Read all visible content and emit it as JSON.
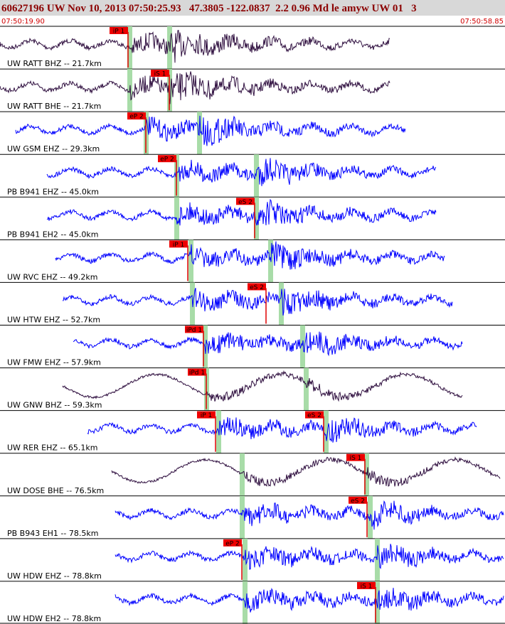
{
  "header": {
    "title": "60627196 UW Nov 10, 2013 07:50:25.93   47.3805 -122.0837  2.2 0.96 Md le amyw UW 01   3",
    "start_time": "07:50:19.90",
    "end_time": "07:50:58.85"
  },
  "traces": [
    {
      "label": "UW RATT BHZ -- 21.7km",
      "picks": [
        "iP 1"
      ]
    },
    {
      "label": "UW RATT BHE -- 21.7km",
      "picks": [
        "iS 1"
      ]
    },
    {
      "label": "UW GSM EHZ -- 29.3km",
      "picks": [
        "eP 2"
      ]
    },
    {
      "label": "PB B941 EHZ -- 45.0km",
      "picks": [
        "eP 2"
      ]
    },
    {
      "label": "PB B941 EH2 -- 45.0km",
      "picks": [
        "eS 2"
      ]
    },
    {
      "label": "UW RVC EHZ -- 49.2km",
      "picks": [
        "iP 1"
      ]
    },
    {
      "label": "UW HTW EHZ -- 52.7km",
      "picks": [
        "eS 2"
      ]
    },
    {
      "label": "UW FMW EHZ -- 57.9km",
      "picks": [
        "iPd 1"
      ]
    },
    {
      "label": "UW GNW BHZ -- 59.3km",
      "picks": [
        "iPd 1"
      ]
    },
    {
      "label": "UW RER EHZ -- 65.1km",
      "picks": [
        "iP 1",
        "eS 2"
      ]
    },
    {
      "label": "UW DOSE BHE -- 76.5km",
      "picks": [
        "iS 1"
      ]
    },
    {
      "label": "PB B943 EH1 -- 78.5km",
      "picks": [
        "eS 2"
      ]
    },
    {
      "label": "UW HDW EHZ -- 78.8km",
      "picks": [
        "eP 2"
      ]
    },
    {
      "label": "UW HDW EH2 -- 78.8km",
      "picks": [
        "iS 1"
      ]
    }
  ]
}
